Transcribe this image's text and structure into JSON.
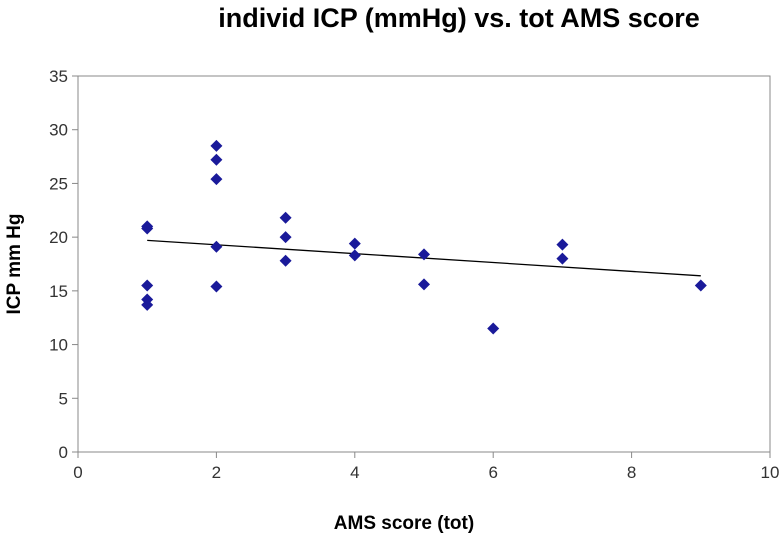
{
  "chart_data": {
    "type": "scatter",
    "title": "individ ICP (mmHg) vs. tot AMS score",
    "xlabel": "AMS score (tot)",
    "ylabel": "ICP mm Hg",
    "xlim": [
      0,
      10
    ],
    "ylim": [
      0,
      35
    ],
    "xticks": [
      "0",
      "2",
      "4",
      "6",
      "8",
      "10"
    ],
    "yticks": [
      "0",
      "5",
      "10",
      "15",
      "20",
      "25",
      "30",
      "35"
    ],
    "grid": false,
    "legend": "none",
    "marker_color": "#1a1a9a",
    "line_color": "#000000",
    "points": [
      {
        "x": 1,
        "y": 21.0
      },
      {
        "x": 1,
        "y": 20.8
      },
      {
        "x": 1,
        "y": 15.5
      },
      {
        "x": 1,
        "y": 14.2
      },
      {
        "x": 1,
        "y": 13.7
      },
      {
        "x": 2,
        "y": 28.5
      },
      {
        "x": 2,
        "y": 27.2
      },
      {
        "x": 2,
        "y": 25.4
      },
      {
        "x": 2,
        "y": 19.1
      },
      {
        "x": 2,
        "y": 15.4
      },
      {
        "x": 3,
        "y": 21.8
      },
      {
        "x": 3,
        "y": 20.0
      },
      {
        "x": 3,
        "y": 17.8
      },
      {
        "x": 4,
        "y": 19.4
      },
      {
        "x": 4,
        "y": 18.3
      },
      {
        "x": 5,
        "y": 18.4
      },
      {
        "x": 5,
        "y": 15.6
      },
      {
        "x": 6,
        "y": 11.5
      },
      {
        "x": 7,
        "y": 19.3
      },
      {
        "x": 7,
        "y": 18.0
      },
      {
        "x": 9,
        "y": 15.5
      }
    ],
    "trendline": {
      "x": [
        1,
        9
      ],
      "y": [
        19.7,
        16.4
      ]
    }
  }
}
